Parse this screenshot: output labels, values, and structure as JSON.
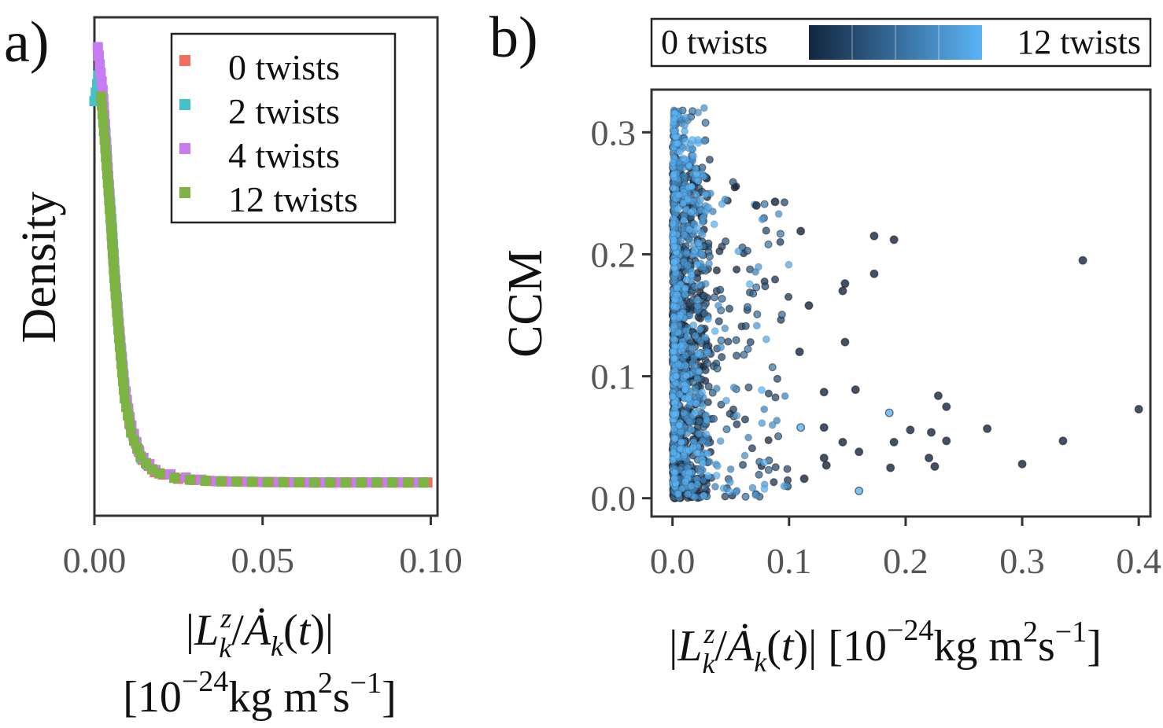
{
  "chart_data": [
    {
      "panel_label": "a)",
      "type": "line",
      "style": "dotted-squares",
      "xlabel_line1": "|L_k^z / Ȧ_k(t)|",
      "xlabel_line2": "[10^-24 kg m^2 s^-1]",
      "ylabel": "Density",
      "xlim": [
        0.0,
        0.102
      ],
      "ylim": [
        0,
        1.0
      ],
      "xticks": [
        "0.00",
        "0.05",
        "0.10"
      ],
      "xtick_values": [
        0.0,
        0.05,
        0.1
      ],
      "legend": [
        "0 twists",
        "2 twists",
        "4 twists",
        "12 twists"
      ],
      "series": [
        {
          "name": "0 twists",
          "color": "#ef6f5f",
          "x": [
            0.0015,
            0.003,
            0.004,
            0.005,
            0.006,
            0.0075,
            0.009,
            0.011,
            0.014,
            0.018,
            0.025,
            0.035,
            0.05,
            0.065,
            0.08,
            0.1
          ],
          "y": [
            0.92,
            0.84,
            0.72,
            0.62,
            0.5,
            0.36,
            0.24,
            0.15,
            0.085,
            0.055,
            0.04,
            0.035,
            0.033,
            0.032,
            0.032,
            0.032
          ]
        },
        {
          "name": "2 twists",
          "color": "#47c1c9",
          "x": [
            0.0,
            0.0015,
            0.003,
            0.004,
            0.005,
            0.006,
            0.0075,
            0.009,
            0.011,
            0.014,
            0.018,
            0.025,
            0.035,
            0.05,
            0.065,
            0.08,
            0.1
          ],
          "y": [
            0.88,
            0.95,
            0.84,
            0.72,
            0.62,
            0.5,
            0.36,
            0.24,
            0.15,
            0.085,
            0.055,
            0.04,
            0.035,
            0.033,
            0.032,
            0.032,
            0.032
          ]
        },
        {
          "name": "4 twists",
          "color": "#c77cf2",
          "x": [
            0.001,
            0.0025,
            0.0035,
            0.0045,
            0.0055,
            0.007,
            0.0085,
            0.0105,
            0.0135,
            0.018,
            0.025,
            0.035,
            0.05,
            0.065,
            0.08,
            0.1
          ],
          "y": [
            1.0,
            0.9,
            0.78,
            0.66,
            0.54,
            0.4,
            0.27,
            0.17,
            0.095,
            0.06,
            0.045,
            0.035,
            0.033,
            0.032,
            0.032,
            0.032
          ]
        },
        {
          "name": "12 twists",
          "color": "#7cb342",
          "x": [
            0.002,
            0.003,
            0.004,
            0.005,
            0.006,
            0.0075,
            0.009,
            0.011,
            0.014,
            0.018,
            0.025,
            0.035,
            0.05,
            0.065,
            0.08,
            0.1
          ],
          "y": [
            0.89,
            0.8,
            0.7,
            0.6,
            0.48,
            0.34,
            0.22,
            0.14,
            0.085,
            0.055,
            0.04,
            0.035,
            0.033,
            0.032,
            0.032,
            0.032
          ]
        }
      ]
    },
    {
      "panel_label": "b)",
      "type": "scatter",
      "xlabel": "|L_k^z / Ȧ_k(t)| [10^-24 kg m^2 s^-1]",
      "ylabel": "CCM",
      "xlim": [
        -0.018,
        0.41
      ],
      "ylim": [
        -0.015,
        0.335
      ],
      "xticks": [
        "0.0",
        "0.1",
        "0.2",
        "0.3",
        "0.4"
      ],
      "xtick_values": [
        0.0,
        0.1,
        0.2,
        0.3,
        0.4
      ],
      "yticks": [
        "0.0",
        "0.1",
        "0.2",
        "0.3"
      ],
      "ytick_values": [
        0.0,
        0.1,
        0.2,
        0.3
      ],
      "colorbar": {
        "min_label": "0 twists",
        "max_label": "12 twists",
        "dark_color": "#13263f",
        "light_color": "#5ab3f5"
      },
      "highlighted_points": [
        {
          "x": 0.352,
          "y": 0.195,
          "twists": 0
        },
        {
          "x": 0.4,
          "y": 0.073,
          "twists": 0
        },
        {
          "x": 0.335,
          "y": 0.047,
          "twists": 0
        },
        {
          "x": 0.3,
          "y": 0.028,
          "twists": 0
        },
        {
          "x": 0.27,
          "y": 0.057,
          "twists": 0
        },
        {
          "x": 0.235,
          "y": 0.075,
          "twists": 0
        },
        {
          "x": 0.228,
          "y": 0.084,
          "twists": 0
        },
        {
          "x": 0.225,
          "y": 0.026,
          "twists": 0
        },
        {
          "x": 0.222,
          "y": 0.054,
          "twists": 0
        },
        {
          "x": 0.22,
          "y": 0.033,
          "twists": 0
        },
        {
          "x": 0.235,
          "y": 0.047,
          "twists": 0
        },
        {
          "x": 0.204,
          "y": 0.056,
          "twists": 0
        },
        {
          "x": 0.19,
          "y": 0.046,
          "twists": 0
        },
        {
          "x": 0.187,
          "y": 0.025,
          "twists": 0
        },
        {
          "x": 0.173,
          "y": 0.215,
          "twists": 0
        },
        {
          "x": 0.19,
          "y": 0.212,
          "twists": 0
        },
        {
          "x": 0.173,
          "y": 0.184,
          "twists": 0
        },
        {
          "x": 0.148,
          "y": 0.176,
          "twists": 0
        },
        {
          "x": 0.146,
          "y": 0.17,
          "twists": 0
        },
        {
          "x": 0.148,
          "y": 0.128,
          "twists": 0
        },
        {
          "x": 0.157,
          "y": 0.089,
          "twists": 0
        },
        {
          "x": 0.13,
          "y": 0.087,
          "twists": 0
        },
        {
          "x": 0.146,
          "y": 0.046,
          "twists": 0
        },
        {
          "x": 0.16,
          "y": 0.038,
          "twists": 0
        },
        {
          "x": 0.13,
          "y": 0.058,
          "twists": 0
        },
        {
          "x": 0.13,
          "y": 0.033,
          "twists": 0
        },
        {
          "x": 0.132,
          "y": 0.027,
          "twists": 0
        },
        {
          "x": 0.16,
          "y": 0.006,
          "twists": 12
        },
        {
          "x": 0.186,
          "y": 0.07,
          "twists": 12
        },
        {
          "x": 0.11,
          "y": 0.219,
          "twists": 0
        },
        {
          "x": 0.117,
          "y": 0.158,
          "twists": 0
        },
        {
          "x": 0.113,
          "y": 0.016,
          "twists": 0
        },
        {
          "x": 0.11,
          "y": 0.058,
          "twists": 12
        },
        {
          "x": 0.109,
          "y": 0.12,
          "twists": 0
        },
        {
          "x": 0.072,
          "y": 0.24,
          "twists": 0
        },
        {
          "x": 0.088,
          "y": 0.243,
          "twists": 0
        }
      ]
    }
  ]
}
